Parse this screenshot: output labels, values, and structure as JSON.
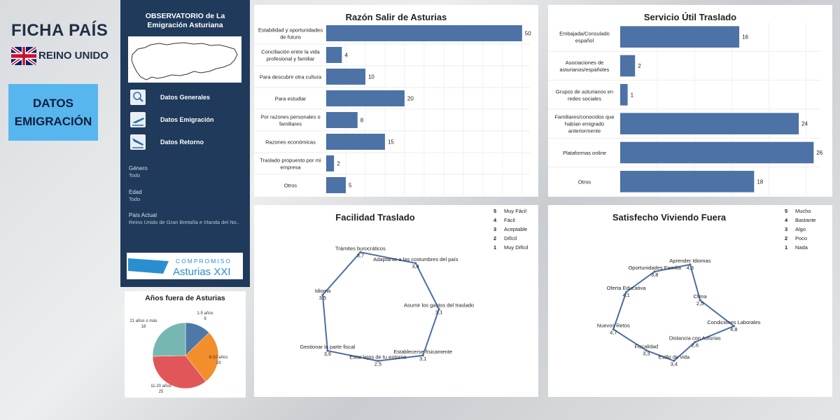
{
  "header": {
    "title": "FICHA PAÍS",
    "country": "REINO UNIDO",
    "section_button": [
      "DATOS",
      "EMIGRACIÓN"
    ]
  },
  "sidebar": {
    "title_line1": "OBSERVATORIO de La",
    "title_line2": "Emigración Asturiana",
    "nav": [
      {
        "label": "Datos Generales",
        "icon": "magnifier-icon"
      },
      {
        "label": "Datos Emigración",
        "icon": "plane-departure-icon"
      },
      {
        "label": "Datos Retorno",
        "icon": "plane-arrival-icon"
      }
    ],
    "filters": [
      {
        "label": "Género",
        "value": "Todo"
      },
      {
        "label": "Edad",
        "value": "Todo"
      },
      {
        "label": "País Actual",
        "value": "Reino Unido de Gran Bretaña e Irlanda del No.."
      }
    ],
    "logo_top": "COMPROMISO",
    "logo_bottom": "Asturias XXI"
  },
  "colors": {
    "bar": "#4c72a6",
    "radar": "#4c6e9e",
    "sidebar": "#1f3a5a",
    "button": "#58b6ef"
  },
  "chart_data": [
    {
      "type": "bar",
      "title": "Razón Salir de Asturias",
      "categories": [
        [
          "Estabilidad y oportunidades",
          "de futuro"
        ],
        [
          "Conciliación entre la vida",
          "profesional y familiar"
        ],
        [
          "Para descubrir otra cultura"
        ],
        [
          "Para estudiar"
        ],
        [
          "Por razones personales o",
          "familiares"
        ],
        [
          "Razones económicas"
        ],
        [
          "Traslado propuesto por mi",
          "empresa"
        ],
        [
          "Otros"
        ]
      ],
      "values": [
        50,
        4,
        10,
        20,
        8,
        15,
        2,
        5
      ],
      "xlim": [
        0,
        52
      ]
    },
    {
      "type": "bar",
      "title": "Servicio Útil Traslado",
      "categories": [
        [
          "Embajada/Consulado",
          "español"
        ],
        [
          "Asociaciones de",
          "asturianos/españoles"
        ],
        [
          "Grupos de asturianos en",
          "redes sociales"
        ],
        [
          "Familiares/conocidos que",
          "habían emigrado",
          "anteriormente"
        ],
        [
          "Plataformas online"
        ],
        [
          "Otros"
        ]
      ],
      "values": [
        16,
        2,
        1,
        24,
        26,
        18
      ],
      "xlim": [
        0,
        27
      ]
    },
    {
      "type": "radar",
      "title": "Facilidad Traslado",
      "axes": [
        "Trámites burocráticos",
        "Adaptarse a las costumbres del país",
        "Asumir los gastos del traslado",
        "Establecerse físicamente",
        "Estar lejos de tu entorno",
        "Gestionar la parte fiscal",
        "Idioma"
      ],
      "value_labels": [
        "3,7",
        "3,4",
        "3,1",
        "3,1",
        "2,5",
        "3,6",
        "3,5"
      ],
      "values": [
        3.7,
        3.4,
        3.1,
        3.1,
        2.5,
        3.6,
        3.5
      ],
      "scale": [
        {
          "n": "5",
          "label": "Muy Fácil"
        },
        {
          "n": "4",
          "label": "Fácil"
        },
        {
          "n": "3",
          "label": "Aceptable"
        },
        {
          "n": "2",
          "label": "Difícil"
        },
        {
          "n": "1",
          "label": "Muy Difícil"
        }
      ]
    },
    {
      "type": "radar",
      "title": "Satisfecho Viviendo Fuera",
      "axes": [
        "Aprender Idiomas",
        "Clima",
        "Condiciones Laborales",
        "Distancia con Asturias",
        "Estilo de vida",
        "Fiscalidad",
        "Nuevos Retos",
        "Oferta Educativa",
        "Oportunidades Familia"
      ],
      "value_labels": [
        "4,3",
        "2,5",
        "4,8",
        "2,6",
        "3,4",
        "3,3",
        "4,7",
        "4,1",
        "3,8"
      ],
      "values": [
        4.3,
        2.5,
        4.8,
        2.6,
        3.4,
        3.3,
        4.7,
        4.1,
        3.8
      ],
      "scale": [
        {
          "n": "5",
          "label": "Mucho"
        },
        {
          "n": "4",
          "label": "Bastante"
        },
        {
          "n": "3",
          "label": "Algo"
        },
        {
          "n": "2",
          "label": "Poco"
        },
        {
          "n": "1",
          "label": "Nada"
        }
      ]
    },
    {
      "type": "pie",
      "title": "Años fuera de Asturias",
      "slices": [
        {
          "label": "1-5 años",
          "value": 9,
          "color": "#4e79a7"
        },
        {
          "label": "6-10 años",
          "value": 19,
          "color": "#f28e2b"
        },
        {
          "label": "11-20 años",
          "value": 25,
          "color": "#e15759"
        },
        {
          "label": "21 años o más",
          "value": 18,
          "color": "#76b7b2"
        }
      ]
    }
  ]
}
